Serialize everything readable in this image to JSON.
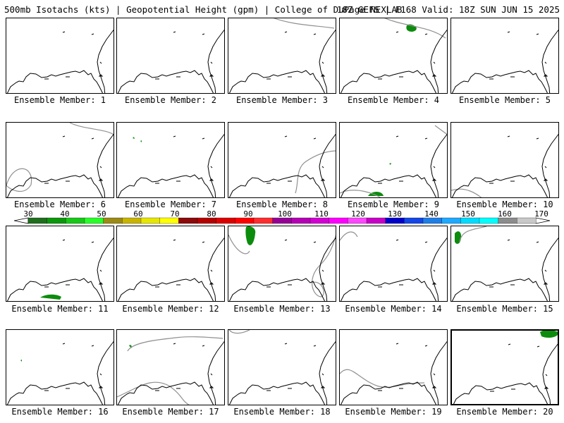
{
  "header": {
    "left": "500mb Isotachs (kts) | Geopotential Height (gpm) | College of DuPage NEXLAB",
    "right": "18Z GEFS | F168 Valid: 18Z SUN JUN 15 2025"
  },
  "members": [
    {
      "label": "Ensemble Member: 1"
    },
    {
      "label": "Ensemble Member: 2"
    },
    {
      "label": "Ensemble Member: 3"
    },
    {
      "label": "Ensemble Member: 4"
    },
    {
      "label": "Ensemble Member: 5"
    },
    {
      "label": "Ensemble Member: 6"
    },
    {
      "label": "Ensemble Member: 7"
    },
    {
      "label": "Ensemble Member: 8"
    },
    {
      "label": "Ensemble Member: 9"
    },
    {
      "label": "Ensemble Member: 10"
    },
    {
      "label": "Ensemble Member: 11"
    },
    {
      "label": "Ensemble Member: 12"
    },
    {
      "label": "Ensemble Member: 13"
    },
    {
      "label": "Ensemble Member: 14"
    },
    {
      "label": "Ensemble Member: 15"
    },
    {
      "label": "Ensemble Member: 16"
    },
    {
      "label": "Ensemble Member: 17"
    },
    {
      "label": "Ensemble Member: 18"
    },
    {
      "label": "Ensemble Member: 19"
    },
    {
      "label": "Ensemble Member: 20"
    }
  ],
  "colorbar": {
    "labels": [
      "30",
      "40",
      "50",
      "60",
      "70",
      "80",
      "90",
      "100",
      "110",
      "120",
      "130",
      "140",
      "150",
      "160",
      "170"
    ],
    "colors": [
      "#1e6e1e",
      "#0c960c",
      "#18c818",
      "#28ff28",
      "#9b8a14",
      "#c8b400",
      "#e6e600",
      "#ffff00",
      "#8c0a0a",
      "#b40000",
      "#dc0000",
      "#ff0000",
      "#ff2d2d",
      "#960096",
      "#b400b4",
      "#d200d2",
      "#ff00ff",
      "#ff46ff",
      "#c800c8",
      "#0000c8",
      "#1446e6",
      "#1e7ee6",
      "#1eaaff",
      "#00dcff",
      "#00ffff",
      "#8c8c8c",
      "#c8c8c8"
    ]
  },
  "colors": {
    "isotach_shading": "#0c8c0c",
    "height_contour": "#909090",
    "coastline": "#000000"
  }
}
